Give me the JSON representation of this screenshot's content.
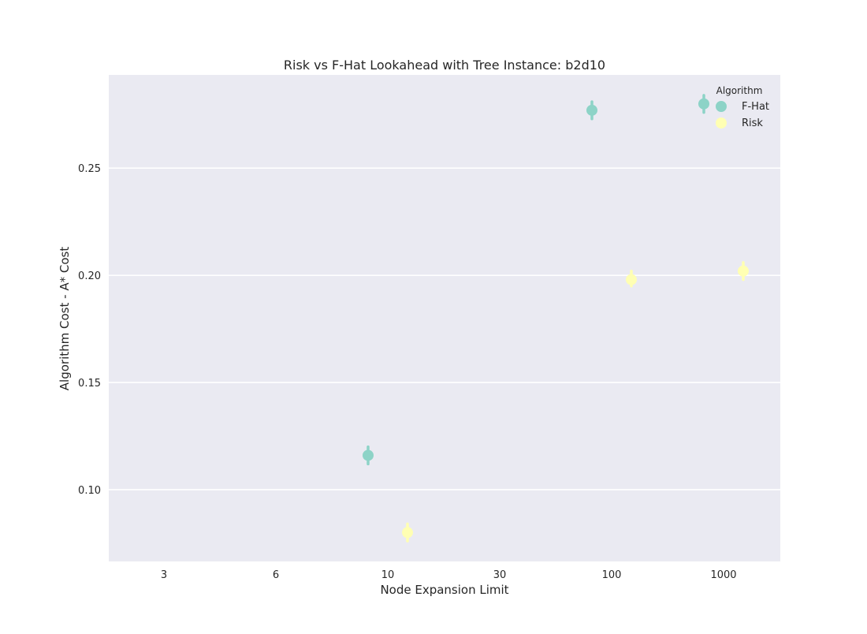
{
  "chart_data": {
    "type": "scatter",
    "title": "Risk vs F-Hat Lookahead with Tree Instance: b2d10",
    "xlabel": "Node Expansion Limit",
    "ylabel": "Algorithm Cost  - A* Cost",
    "categories": [
      "3",
      "6",
      "10",
      "30",
      "100",
      "1000"
    ],
    "ylim": [
      0.0665,
      0.2935
    ],
    "yticks": [
      0.1,
      0.15,
      0.2,
      0.25
    ],
    "ytick_labels": [
      "0.10",
      "0.15",
      "0.20",
      "0.25"
    ],
    "grid": "horizontal",
    "legend": {
      "title": "Algorithm",
      "placement": "top-right"
    },
    "series": [
      {
        "name": "F-Hat",
        "color": "#8dd3c7",
        "values": [
          null,
          null,
          0.116,
          null,
          0.277,
          0.28
        ],
        "err_low": [
          null,
          null,
          0.112,
          null,
          0.273,
          0.276
        ],
        "err_high": [
          null,
          null,
          0.12,
          null,
          0.281,
          0.284
        ]
      },
      {
        "name": "Risk",
        "color": "#ffffb3",
        "values": [
          null,
          null,
          0.08,
          null,
          0.198,
          0.202
        ],
        "err_low": [
          null,
          null,
          0.076,
          null,
          0.195,
          0.198
        ],
        "err_high": [
          null,
          null,
          0.084,
          null,
          0.202,
          0.206
        ]
      }
    ]
  }
}
